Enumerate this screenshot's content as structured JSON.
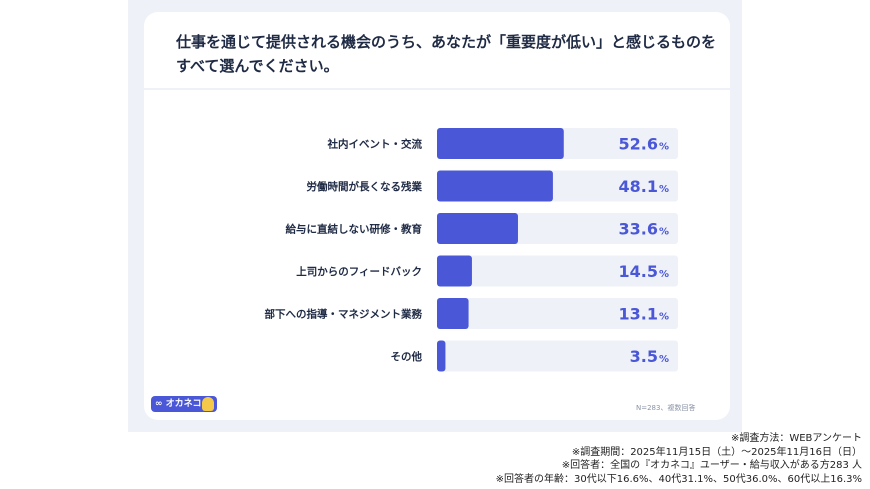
{
  "title": "仕事を通じて提供される機会のうち、あなたが「重要度が低い」と感じるものをすべて選んでください。",
  "logo_text": "∞ オカネコ",
  "sample_note": "N=283、複数回答",
  "footnotes": [
    "※調査方法：WEBアンケート",
    "※調査期間：2025年11月15日（土）〜2025年11月16日（日）",
    "※回答者：全国の『オカネコ』ユーザー・給与収入がある方283 人",
    "※回答者の年齢：30代以下16.6%、40代31.1%、50代36.0%、60代以上16.3%"
  ],
  "colors": {
    "bar": "#4a57d6",
    "track": "#eef1f7",
    "value_text": "#4a57d6",
    "label_text": "#1f2a44"
  },
  "chart_data": {
    "type": "bar",
    "orientation": "horizontal",
    "categories": [
      "社内イベント・交流",
      "労働時間が長くなる残業",
      "給与に直結しない研修・教育",
      "上司からのフィードバック",
      "部下への指導・マネジメント業務",
      "その他"
    ],
    "values": [
      52.6,
      48.1,
      33.6,
      14.5,
      13.1,
      3.5
    ],
    "value_labels": [
      "52.6",
      "48.1",
      "33.6",
      "14.5",
      "13.1",
      "3.5"
    ],
    "unit": "%",
    "xlim": [
      0,
      100
    ]
  }
}
